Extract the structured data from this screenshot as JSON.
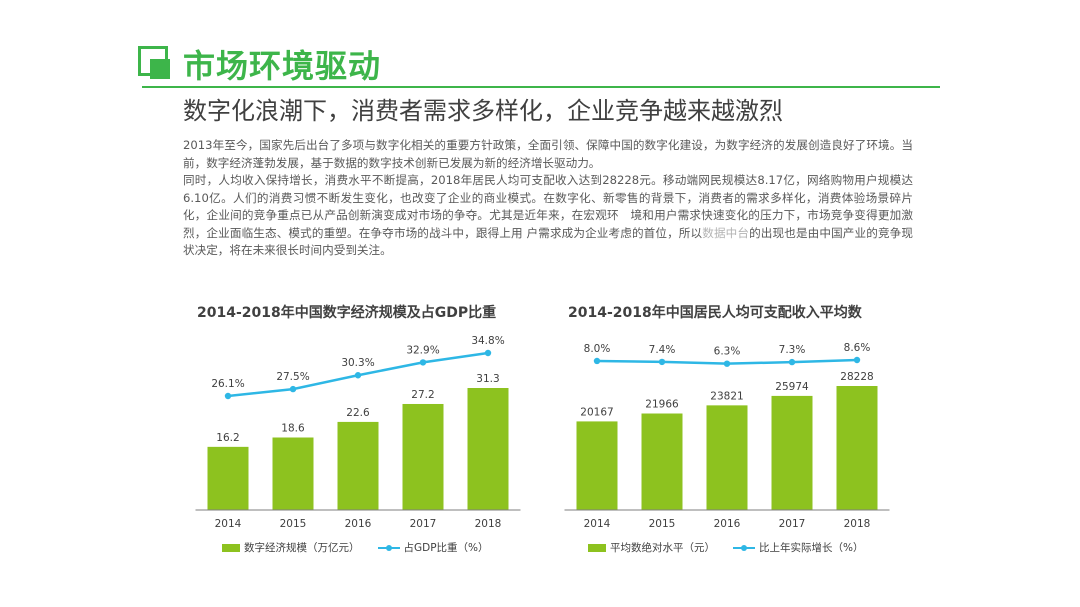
{
  "header": {
    "title": "市场环境驱动",
    "subtitle": "数字化浪潮下，消费者需求多样化，企业竞争越来越激烈"
  },
  "body": {
    "p1": "2013年至今，国家先后出台了多项与数字化相关的重要方针政策，全面引领、保障中国的数字化建设，为数字经济的发展创造良好了环境。当前，数字经济蓬勃发展，基于数据的数字技术创新已发展为新的经济增长驱动力。",
    "p2a": "同时，人均收入保持增长，消费水平不断提高，2018年居民人均可支配收入达到28228元。移动端网民规模达8.17亿，网络购物用户规模达6.10亿。人们的消费习惯不断发生变化，也改变了企业的商业模式。在数字化、新零售的背景下，消费者的需求多样化，消费体验场景碎片化，企业间的竞争重点已从产品创新演变成对市场的争夺。尤其是近年来，在宏观环　境和用户需求快速变化的压力下，市场竞争变得更加激烈，企业面临生态、模式的重塑。在争夺市场的战斗中，跟得上用 户需求成为企业考虑的首位，所以",
    "p2b": "数据中台",
    "p2c": "的出现也是由中国产业的竞争现状决定，将在未来很长时间内受到关注。"
  },
  "colors": {
    "accent": "#3db54a",
    "bar": "#8dc21f",
    "line": "#2eb7e5"
  },
  "chart_data": [
    {
      "type": "bar",
      "title": "2014-2018年中国数字经济规模及占GDP比重",
      "categories": [
        "2014",
        "2015",
        "2016",
        "2017",
        "2018"
      ],
      "series": [
        {
          "name": "数字经济规模（万亿元）",
          "type": "bar",
          "values": [
            16.2,
            18.6,
            22.6,
            27.2,
            31.3
          ]
        },
        {
          "name": "占GDP比重（%）",
          "type": "line",
          "values": [
            26.1,
            27.5,
            30.3,
            32.9,
            34.8
          ],
          "labels": [
            "26.1%",
            "27.5%",
            "30.3%",
            "32.9%",
            "34.8%"
          ]
        }
      ]
    },
    {
      "type": "bar",
      "title": "2014-2018年中国居民人均可支配收入平均数",
      "categories": [
        "2014",
        "2015",
        "2016",
        "2017",
        "2018"
      ],
      "series": [
        {
          "name": "平均数绝对水平（元）",
          "type": "bar",
          "values": [
            20167,
            21966,
            23821,
            25974,
            28228
          ]
        },
        {
          "name": "比上年实际增长（%）",
          "type": "line",
          "values": [
            8.0,
            7.4,
            6.3,
            7.3,
            8.6
          ],
          "labels": [
            "8.0%",
            "7.4%",
            "6.3%",
            "7.3%",
            "8.6%"
          ]
        }
      ]
    }
  ]
}
